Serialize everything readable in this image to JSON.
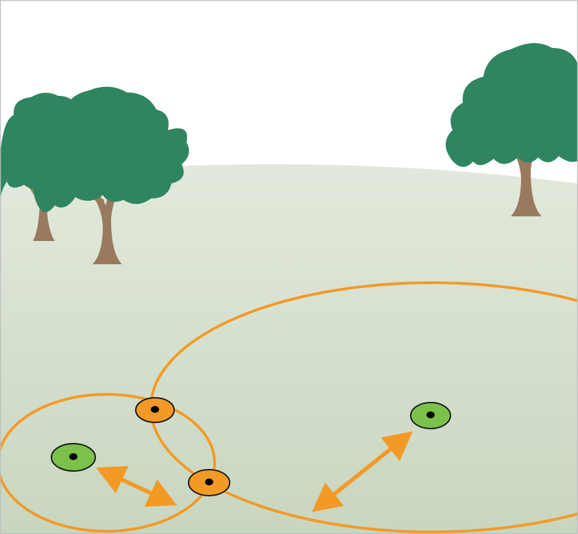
{
  "colors": {
    "sky": "#ffffff",
    "ground_top": "#e2e9dc",
    "ground_bottom": "#c8d6c0",
    "foliage": "#2f855f",
    "trunk": "#9a7a5e",
    "range_ring": "#f39a26",
    "orange_marker": "#f39a26",
    "green_marker": "#7cc24a",
    "marker_outline": "#1a1a1a",
    "marker_center": "#000000",
    "arrow": "#f39a26",
    "frame": "#bdbdbd"
  },
  "elements": {
    "trees": [
      "tree-back-left",
      "tree-front-left",
      "tree-right"
    ],
    "markers": [
      {
        "name": "orange-marker-upper",
        "kind": "orange"
      },
      {
        "name": "orange-marker-lower",
        "kind": "orange"
      },
      {
        "name": "green-marker-left",
        "kind": "green"
      },
      {
        "name": "green-marker-right",
        "kind": "green"
      }
    ],
    "arrows": [
      "double-arrow-left",
      "double-arrow-right"
    ]
  }
}
